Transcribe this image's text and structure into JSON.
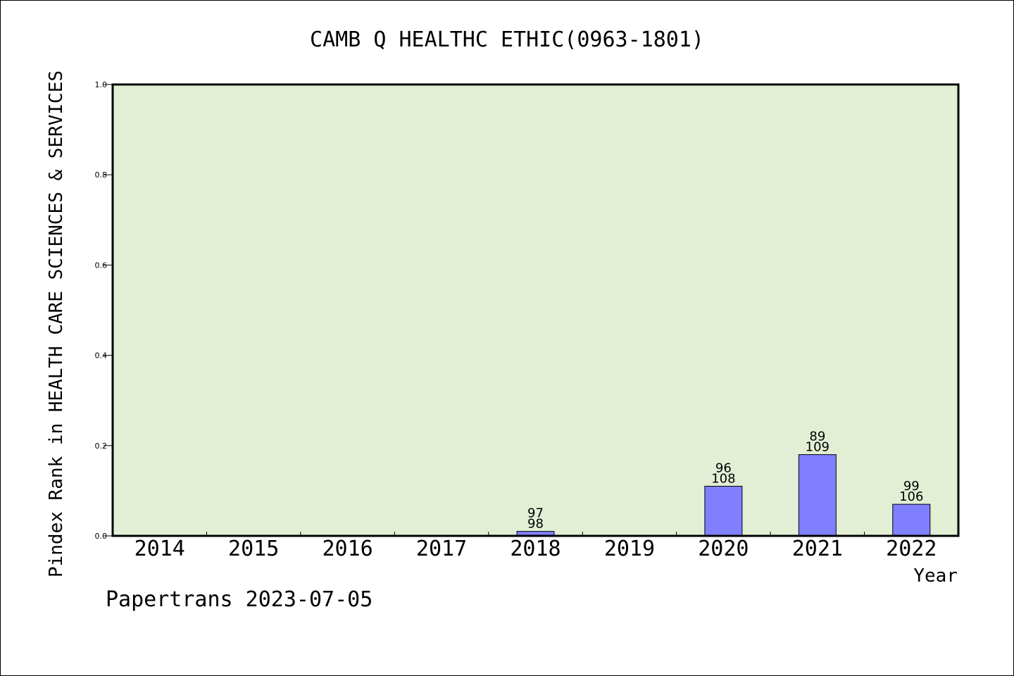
{
  "chart_data": {
    "type": "bar",
    "title": "CAMB Q HEALTHC ETHIC(0963-1801)",
    "xlabel": "Year",
    "ylabel": "Pindex Rank in HEALTH CARE SCIENCES & SERVICES",
    "ylim": [
      0,
      1.0
    ],
    "yticks": [
      "0.0",
      "0.2",
      "0.4",
      "0.6",
      "0.8",
      "1.0"
    ],
    "categories": [
      "2014",
      "2015",
      "2016",
      "2017",
      "2018",
      "2019",
      "2020",
      "2021",
      "2022"
    ],
    "values": [
      null,
      null,
      null,
      null,
      0.01,
      null,
      0.11,
      0.18,
      0.07
    ],
    "bar_labels": [
      null,
      null,
      null,
      null,
      {
        "top": "97",
        "bottom": "98"
      },
      null,
      {
        "top": "96",
        "bottom": "108"
      },
      {
        "top": "89",
        "bottom": "109"
      },
      {
        "top": "99",
        "bottom": "106"
      }
    ],
    "grid": false,
    "colors": {
      "plot_bg": "#e2efd5",
      "bar_fill": "#8080ff",
      "bar_stroke": "#000000"
    }
  },
  "footer": {
    "text": "Papertrans 2023-07-05"
  }
}
